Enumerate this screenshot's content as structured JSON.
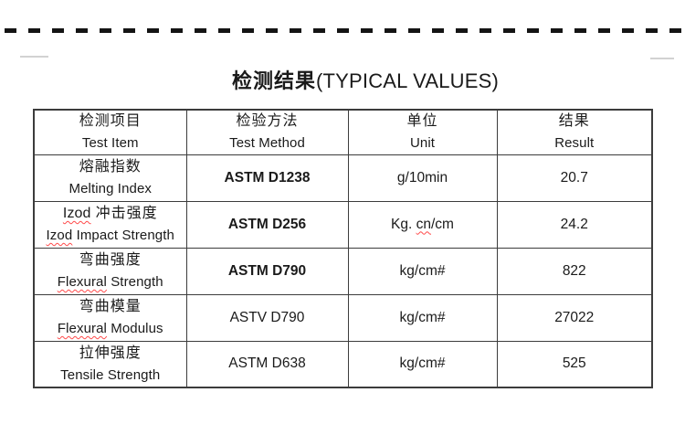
{
  "title": {
    "zh": "检测结果",
    "en": "(TYPICAL VALUES)"
  },
  "decor": {
    "divider_style": "dashed",
    "divider_color": "#141414",
    "border_color": "#3c3c3c",
    "squiggle_color": "#ff4a4a",
    "text_color": "#1a1a1a",
    "background": "#ffffff"
  },
  "table": {
    "headers": [
      {
        "zh": "检测项目",
        "en": "Test Item"
      },
      {
        "zh": "检验方法",
        "en": "Test Method"
      },
      {
        "zh": "单位",
        "en": "Unit"
      },
      {
        "zh": "结果",
        "en": "Result"
      }
    ],
    "rows": [
      {
        "item_zh": [
          [
            "熔融指数",
            false
          ]
        ],
        "item_en": [
          [
            "Melting Index",
            false
          ]
        ],
        "method": "ASTM D1238",
        "method_bold": true,
        "unit": [
          [
            "g/10min",
            false
          ]
        ],
        "result": "20.7"
      },
      {
        "item_zh": [
          [
            "Izod",
            true
          ],
          [
            " 冲击强度",
            false
          ]
        ],
        "item_en": [
          [
            "Izod",
            true
          ],
          [
            " Impact Strength",
            false
          ]
        ],
        "method": "ASTM D256",
        "method_bold": true,
        "unit": [
          [
            "Kg. ",
            false
          ],
          [
            "cn",
            true
          ],
          [
            "/cm",
            false
          ]
        ],
        "result": "24.2"
      },
      {
        "item_zh": [
          [
            "弯曲强度",
            false
          ]
        ],
        "item_en": [
          [
            "Flexural",
            true
          ],
          [
            " Strength",
            false
          ]
        ],
        "method": "ASTM D790",
        "method_bold": true,
        "unit": [
          [
            "kg/cm#",
            false
          ]
        ],
        "result": "822"
      },
      {
        "item_zh": [
          [
            "弯曲模量",
            false
          ]
        ],
        "item_en": [
          [
            "Flexural",
            true
          ],
          [
            " Modulus",
            false
          ]
        ],
        "method": "ASTV D790",
        "method_bold": false,
        "unit": [
          [
            "kg/cm#",
            false
          ]
        ],
        "result": "27022"
      },
      {
        "item_zh": [
          [
            "拉伸强度",
            false
          ]
        ],
        "item_en": [
          [
            "Tensile Strength",
            false
          ]
        ],
        "method": "ASTM D638",
        "method_bold": false,
        "unit": [
          [
            "kg/cm#",
            false
          ]
        ],
        "result": "525"
      }
    ]
  }
}
